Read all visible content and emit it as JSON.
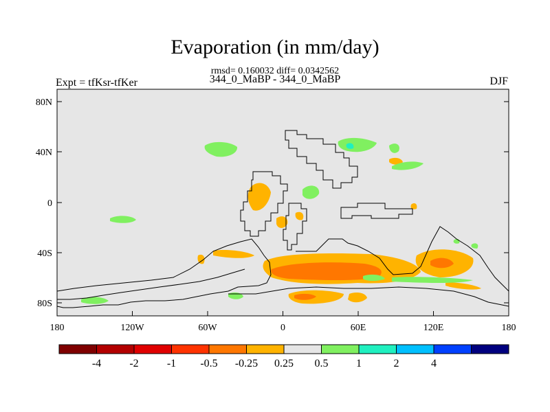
{
  "title": "Evaporation (in mm/day)",
  "stats_line": "rmsd= 0.160032 diff= 0.0342562",
  "subtitle": "344_0_MaBP - 344_0_MaBP",
  "left_label": "Expt = tfKsr-tfKer",
  "right_label": "DJF",
  "x_ticks": [
    "180",
    "120W",
    "60W",
    "0",
    "60E",
    "120E",
    "180"
  ],
  "y_ticks": [
    "80N",
    "40N",
    "0",
    "40S",
    "80S"
  ],
  "colors": {
    "background": "#e6e6e6",
    "coast": "#000000",
    "bins": [
      "#7f0000",
      "#b30000",
      "#e00000",
      "#ff3300",
      "#ff7700",
      "#ffb300",
      "#e6e6e6",
      "#80f060",
      "#20f0c0",
      "#00c0ff",
      "#0040ff",
      "#00007f"
    ]
  },
  "colorbar": {
    "labels": [
      "-4",
      "-2",
      "-1",
      "-0.5",
      "-0.25",
      "0.25",
      "0.5",
      "1",
      "2",
      "4"
    ]
  }
}
